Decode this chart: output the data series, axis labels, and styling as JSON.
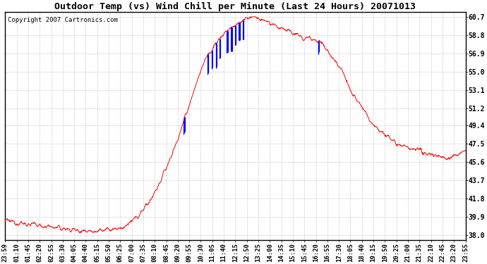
{
  "title": "Outdoor Temp (vs) Wind Chill per Minute (Last 24 Hours) 20071013",
  "copyright_text": "Copyright 2007 Cartronics.com",
  "background_color": "#ffffff",
  "plot_bg_color": "#ffffff",
  "grid_color": "#aaaaaa",
  "line_color_red": "#ff0000",
  "line_color_blue": "#0000ff",
  "yticks": [
    38.0,
    39.9,
    41.8,
    43.7,
    45.6,
    47.5,
    49.4,
    51.2,
    53.1,
    55.0,
    56.9,
    58.8,
    60.7
  ],
  "ymin": 38.0,
  "ymax": 60.7,
  "xtick_labels": [
    "23:59",
    "01:10",
    "01:45",
    "02:20",
    "02:55",
    "03:30",
    "04:05",
    "04:40",
    "05:15",
    "05:50",
    "06:25",
    "07:00",
    "07:35",
    "08:10",
    "08:45",
    "09:20",
    "09:55",
    "10:30",
    "11:05",
    "11:40",
    "12:15",
    "12:50",
    "13:25",
    "14:00",
    "14:35",
    "15:10",
    "15:45",
    "16:20",
    "16:55",
    "17:30",
    "18:05",
    "18:40",
    "19:15",
    "19:50",
    "20:25",
    "21:00",
    "21:35",
    "22:10",
    "22:45",
    "23:20",
    "23:55"
  ],
  "figsize": [
    6.9,
    3.75
  ],
  "dpi": 100
}
